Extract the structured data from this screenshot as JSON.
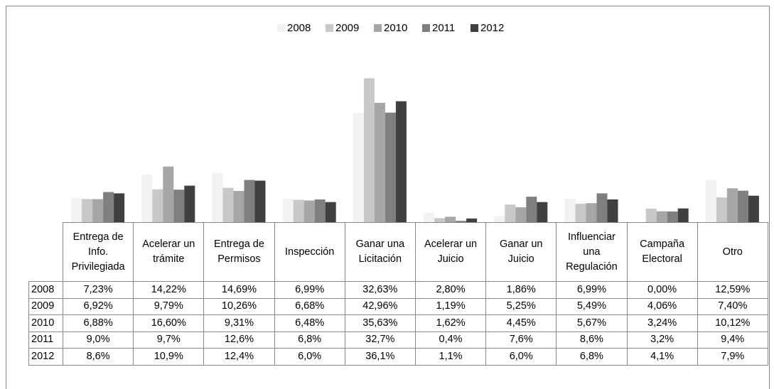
{
  "chart_data": {
    "type": "bar",
    "categories": [
      "Entrega de Info. Privilegiada",
      "Acelerar un trámite",
      "Entrega de Permisos",
      "Inspección",
      "Ganar una Licitación",
      "Acelerar un Juicio",
      "Ganar un Juicio",
      "Influenciar una Regulación",
      "Campaña Electoral",
      "Otro"
    ],
    "series": [
      {
        "name": "2008",
        "color": "#f2f2f2",
        "values": [
          7.23,
          14.22,
          14.69,
          6.99,
          32.63,
          2.8,
          1.86,
          6.99,
          0.0,
          12.59
        ],
        "value_labels": [
          "7,23%",
          "14,22%",
          "14,69%",
          "6,99%",
          "32,63%",
          "2,80%",
          "1,86%",
          "6,99%",
          "0,00%",
          "12,59%"
        ]
      },
      {
        "name": "2009",
        "color": "#c8c8c8",
        "values": [
          6.92,
          9.79,
          10.26,
          6.68,
          42.96,
          1.19,
          5.25,
          5.49,
          4.06,
          7.4
        ],
        "value_labels": [
          "6,92%",
          "9,79%",
          "10,26%",
          "6,68%",
          "42,96%",
          "1,19%",
          "5,25%",
          "5,49%",
          "4,06%",
          "7,40%"
        ]
      },
      {
        "name": "2010",
        "color": "#a6a6a6",
        "values": [
          6.88,
          16.6,
          9.31,
          6.48,
          35.63,
          1.62,
          4.45,
          5.67,
          3.24,
          10.12
        ],
        "value_labels": [
          "6,88%",
          "16,60%",
          "9,31%",
          "6,48%",
          "35,63%",
          "1,62%",
          "4,45%",
          "5,67%",
          "3,24%",
          "10,12%"
        ]
      },
      {
        "name": "2011",
        "color": "#7f7f7f",
        "values": [
          9.0,
          9.7,
          12.6,
          6.8,
          32.7,
          0.4,
          7.6,
          8.6,
          3.2,
          9.4
        ],
        "value_labels": [
          "9,0%",
          "9,7%",
          "12,6%",
          "6,8%",
          "32,7%",
          "0,4%",
          "7,6%",
          "8,6%",
          "3,2%",
          "9,4%"
        ]
      },
      {
        "name": "2012",
        "color": "#404040",
        "values": [
          8.6,
          10.9,
          12.4,
          6.0,
          36.1,
          1.1,
          6.0,
          6.8,
          4.1,
          7.9
        ],
        "value_labels": [
          "8,6%",
          "10,9%",
          "12,4%",
          "6,0%",
          "36,1%",
          "1,1%",
          "6,0%",
          "6,8%",
          "4,1%",
          "7,9%"
        ]
      }
    ],
    "ylim": [
      0,
      50
    ],
    "legend": "top"
  }
}
